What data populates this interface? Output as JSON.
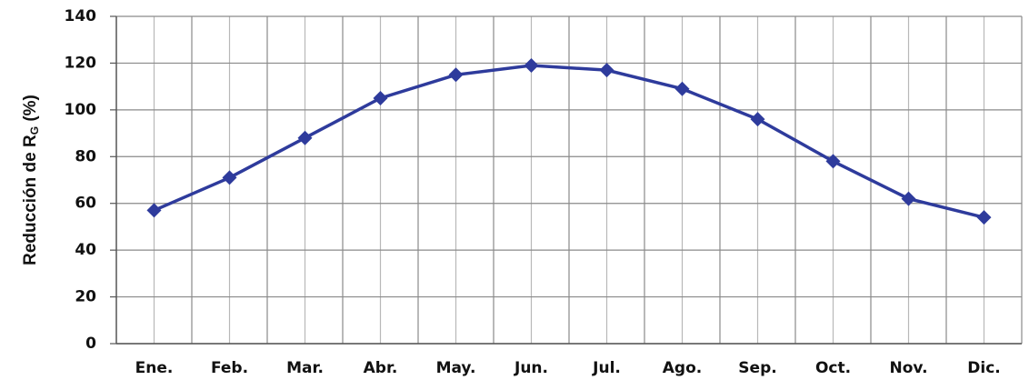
{
  "chart_data": {
    "type": "line",
    "y_label": {
      "text": "Reducción de R",
      "subscript": "G",
      "suffix": " (%)"
    },
    "categories": [
      "Ene.",
      "Feb.",
      "Mar.",
      "Abr.",
      "May.",
      "Jun.",
      "Jul.",
      "Ago.",
      "Sep.",
      "Oct.",
      "Nov.",
      "Dic."
    ],
    "values": [
      57,
      71,
      88,
      105,
      115,
      119,
      117,
      109,
      96,
      78,
      62,
      54
    ],
    "color": "#2e3b9c",
    "ylim": [
      0,
      140
    ],
    "yticks": [
      0,
      20,
      40,
      60,
      80,
      100,
      120,
      140
    ],
    "grid": true
  }
}
